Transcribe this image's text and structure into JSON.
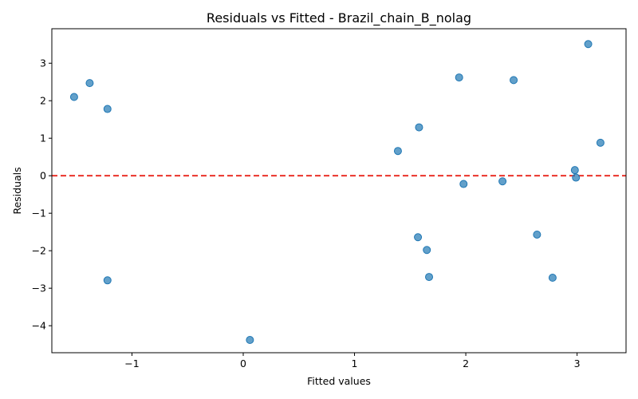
{
  "chart_data": {
    "type": "scatter",
    "title": "Residuals vs Fitted - Brazil_chain_B_nolag",
    "xlabel": "Fitted values",
    "ylabel": "Residuals",
    "xlim": [
      -1.72,
      3.44
    ],
    "ylim": [
      -4.72,
      3.92
    ],
    "xticks": [
      -1,
      0,
      1,
      2,
      3
    ],
    "yticks": [
      -4,
      -3,
      -2,
      -1,
      0,
      1,
      2,
      3
    ],
    "reference_line": {
      "y": 0,
      "style": "dashed",
      "color": "#e8231a"
    },
    "point_color": "#1f77b4",
    "points": [
      {
        "x": -1.52,
        "y": 2.1
      },
      {
        "x": -1.38,
        "y": 2.47
      },
      {
        "x": -1.22,
        "y": 1.78
      },
      {
        "x": -1.22,
        "y": -2.79
      },
      {
        "x": 0.06,
        "y": -4.38
      },
      {
        "x": 1.39,
        "y": 0.66
      },
      {
        "x": 1.57,
        "y": -1.64
      },
      {
        "x": 1.58,
        "y": 1.29
      },
      {
        "x": 1.65,
        "y": -1.98
      },
      {
        "x": 1.67,
        "y": -2.7
      },
      {
        "x": 1.94,
        "y": 2.62
      },
      {
        "x": 1.98,
        "y": -0.22
      },
      {
        "x": 2.33,
        "y": -0.15
      },
      {
        "x": 2.43,
        "y": 2.55
      },
      {
        "x": 2.64,
        "y": -1.57
      },
      {
        "x": 2.78,
        "y": -2.72
      },
      {
        "x": 2.98,
        "y": 0.15
      },
      {
        "x": 2.99,
        "y": -0.05
      },
      {
        "x": 3.1,
        "y": 3.51
      },
      {
        "x": 3.21,
        "y": 0.88
      }
    ]
  }
}
